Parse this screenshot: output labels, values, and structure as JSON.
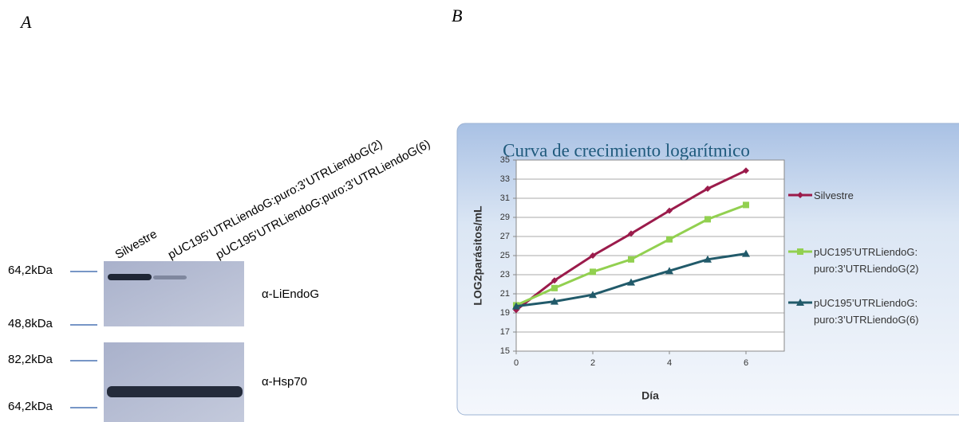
{
  "panel_labels": [
    "A",
    "B"
  ],
  "blot": {
    "lanes": [
      "Silvestre",
      "pUC195’UTRLiendoG:puro:3’UTRLiendoG(2)",
      "pUC195’UTRLiendoG:puro:3’UTRLiendoG(6)"
    ],
    "panels": [
      {
        "antibody": "α-LiEndoG",
        "markers": [
          "64,2kDa",
          "48,8kDa"
        ]
      },
      {
        "antibody": "α-Hsp70",
        "markers": [
          "82,2kDa",
          "64,2kDa"
        ]
      }
    ]
  },
  "chart_data": {
    "type": "line",
    "title": "Curva de crecimiento logarítmico",
    "x_label": "Día",
    "y_label": "LOG2parásitos/mL",
    "x": [
      0,
      1,
      2,
      3,
      4,
      5,
      6
    ],
    "xlim": [
      0,
      7
    ],
    "xticks": [
      0,
      2,
      4,
      6
    ],
    "ylim": [
      15,
      35
    ],
    "yticks": [
      15,
      17,
      19,
      21,
      23,
      25,
      27,
      29,
      31,
      33,
      35
    ],
    "grid": true,
    "series": [
      {
        "name": "Silvestre",
        "color": "#9b1b4b",
        "marker": "diamond",
        "values": [
          19.3,
          22.4,
          25.0,
          27.3,
          29.7,
          32.0,
          33.9
        ]
      },
      {
        "name": "pUC195’UTRLiendoG: puro:3’UTRLiendoG(2)",
        "color": "#92d050",
        "marker": "square",
        "values": [
          19.8,
          21.6,
          23.3,
          24.6,
          26.7,
          28.8,
          30.3
        ]
      },
      {
        "name": "pUC195’UTRLiendoG: puro:3’UTRLiendoG(6)",
        "color": "#215a6a",
        "marker": "triangle",
        "values": [
          19.7,
          20.2,
          20.9,
          22.2,
          23.4,
          24.6,
          25.2
        ]
      }
    ]
  }
}
